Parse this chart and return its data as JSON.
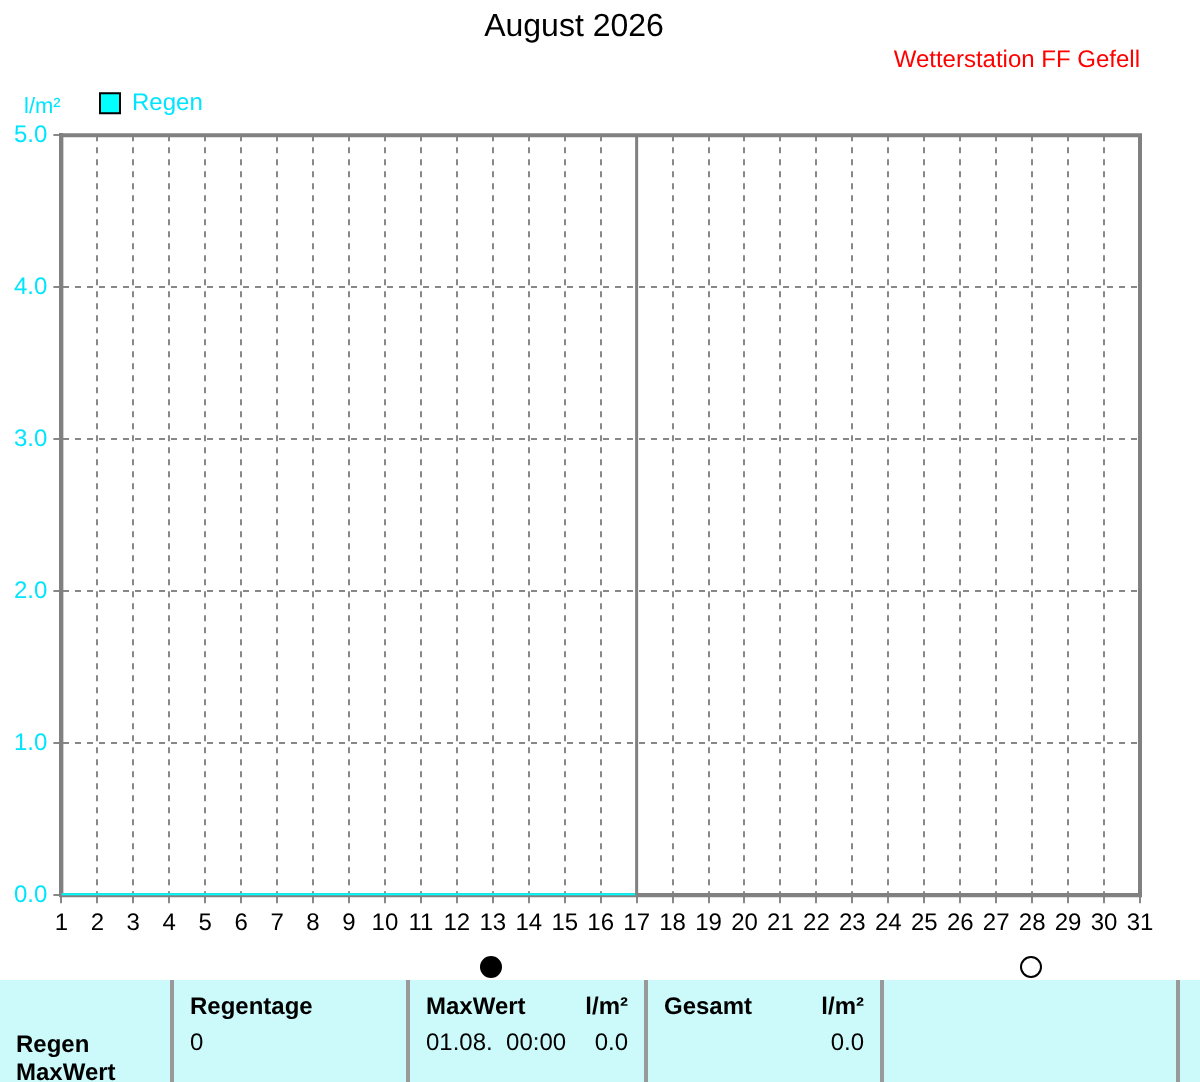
{
  "chart_data": {
    "type": "line",
    "title": "August 2026",
    "subtitle": "Wetterstation FF Gefell",
    "ylabel": "l/m²",
    "x": [
      1,
      17
    ],
    "series": [
      {
        "name": "Regen",
        "color": "#00ffff",
        "values": [
          0,
          0
        ]
      }
    ],
    "xlim": [
      1,
      31
    ],
    "xticks": [
      1,
      2,
      3,
      4,
      5,
      6,
      7,
      8,
      9,
      10,
      11,
      12,
      13,
      14,
      15,
      16,
      17,
      18,
      19,
      20,
      21,
      22,
      23,
      24,
      25,
      26,
      27,
      28,
      29,
      30,
      31
    ],
    "ylim": [
      0,
      5
    ],
    "yticks": [
      {
        "value": 0,
        "label": "0.0"
      },
      {
        "value": 1,
        "label": "1.0"
      },
      {
        "value": 2,
        "label": "2.0"
      },
      {
        "value": 3,
        "label": "3.0"
      },
      {
        "value": 4,
        "label": "4.0"
      },
      {
        "value": 5,
        "label": "5.0"
      }
    ],
    "ref_lines": [
      {
        "axis": "x",
        "value": 17,
        "color": "#808080"
      }
    ],
    "grid": true,
    "legend": "top left",
    "marker": "none",
    "line_style": "solid",
    "annotations": [
      "Regen",
      "MaxWert",
      "Regentage",
      "0",
      "MaxWert",
      "l/m²",
      "01.08.  00:00",
      "0.0",
      "Gesamt",
      "l/m²",
      "0.0"
    ]
  }
}
